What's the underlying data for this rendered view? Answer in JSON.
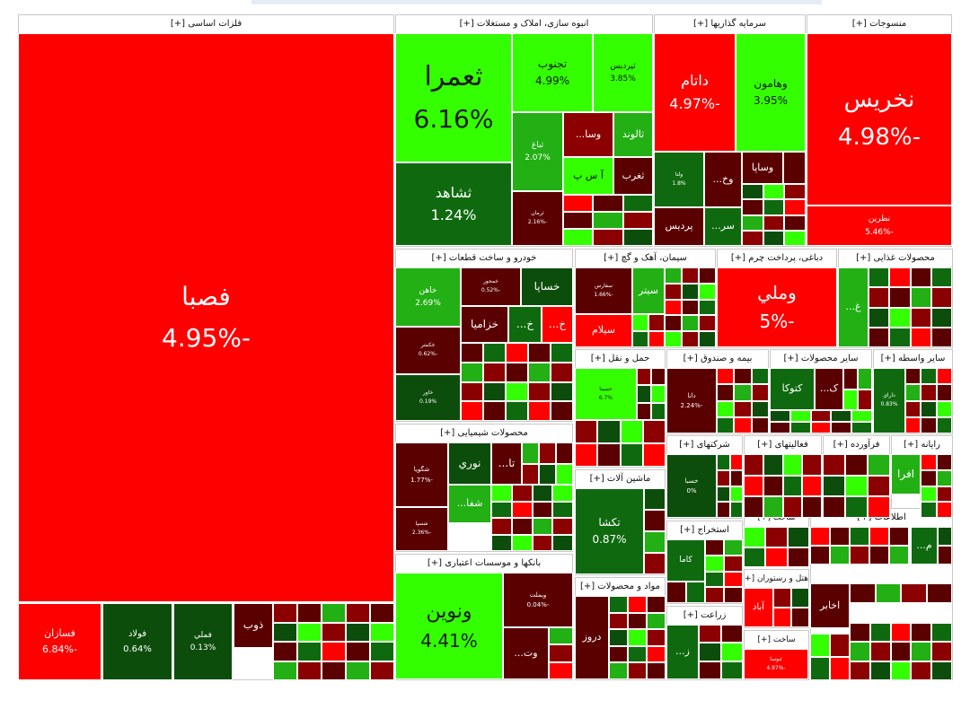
{
  "chart_data": {
    "type": "treemap",
    "colors": {
      "strong_red": "#ff0000",
      "dark_red": "#8b0000",
      "deep_red": "#5a0000",
      "bright_green": "#33ff00",
      "mid_green": "#22b014",
      "dark_green": "#0f6a0f",
      "deep_green": "#0c4d0c"
    },
    "sectors": [
      {
        "name": "فلزات اساسی [+]"
      },
      {
        "name": "انبوه سازی، املاک و مستغلات [+]"
      },
      {
        "name": "سرمایه گذاریها [+]"
      },
      {
        "name": "منسوجات [+]"
      },
      {
        "name": "خودرو و ساخت قطعات [+]"
      },
      {
        "name": "سیمان، آهک و گچ [+]"
      },
      {
        "name": "دباغی، پرداخت چرم [+]"
      },
      {
        "name": "محصولات غذایی [+]"
      },
      {
        "name": "حمل و نقل [+]"
      },
      {
        "name": "بیمه و صندوق [+]"
      },
      {
        "name": "سایر محصولات [+]"
      },
      {
        "name": "سایر واسطه [+]"
      },
      {
        "name": "محصولات شیمیایی [+]"
      },
      {
        "name": "شرکتهای [+]"
      },
      {
        "name": "فعالیتهای [+]"
      },
      {
        "name": "فرآورده [+]"
      },
      {
        "name": "رایانه [+]"
      },
      {
        "name": "ماشین آلات [+]"
      },
      {
        "name": "استخراج [+]"
      },
      {
        "name": "ساخت [+]"
      },
      {
        "name": "بانکها و موسسات اعتباری [+]"
      },
      {
        "name": "مواد و محصولات [+]"
      },
      {
        "name": "هتل و رستوران [+]"
      },
      {
        "name": "زراعت [+]"
      },
      {
        "name": "ساخت [+]"
      },
      {
        "name": "اطلاعات [+]"
      },
      {
        "name": "[+]"
      }
    ],
    "tiles": [
      {
        "name": "فصبا",
        "change": "-4.95%",
        "value": -4.95
      },
      {
        "name": "فسازان",
        "change": "-6.84%",
        "value": -6.84
      },
      {
        "name": "فولاد",
        "change": "0.64%",
        "value": 0.64
      },
      {
        "name": "فملي",
        "change": "0.13%",
        "value": 0.13
      },
      {
        "name": "ذوب",
        "change": "",
        "value": -1.5
      },
      {
        "name": "ثعمرا",
        "change": "6.16%",
        "value": 6.16
      },
      {
        "name": "تجنوب",
        "change": "4.99%",
        "value": 4.99
      },
      {
        "name": "ثپردیس",
        "change": "3.85%",
        "value": 3.85
      },
      {
        "name": "ثشاهد",
        "change": "1.24%",
        "value": 1.24
      },
      {
        "name": "ثباغ",
        "change": "2.07%",
        "value": 2.07
      },
      {
        "name": "وسا...",
        "change": "",
        "value": -2.5
      },
      {
        "name": "ثالوند",
        "change": "",
        "value": 3.0
      },
      {
        "name": "آ س پ",
        "change": "",
        "value": 3.5
      },
      {
        "name": "ثغرب",
        "change": "",
        "value": -2.0
      },
      {
        "name": "ثرمان",
        "change": "-2.16%",
        "value": -2.16
      },
      {
        "name": "داتام",
        "change": "-4.97%",
        "value": -4.97
      },
      {
        "name": "وهامون",
        "change": "3.95%",
        "value": 3.95
      },
      {
        "name": "ولتا",
        "change": "1.8%",
        "value": 1.8
      },
      {
        "name": "وخ...",
        "change": "",
        "value": -2.0
      },
      {
        "name": "وساپا",
        "change": "",
        "value": -2.0
      },
      {
        "name": "پردیس",
        "change": "",
        "value": -2.0
      },
      {
        "name": "سر...",
        "change": "",
        "value": 1.0
      },
      {
        "name": "نخریس",
        "change": "-4.98%",
        "value": -4.98
      },
      {
        "name": "نطرین",
        "change": "-5.46%",
        "value": -5.46
      },
      {
        "name": "خاهن",
        "change": "2.69%",
        "value": 2.69
      },
      {
        "name": "خمحور",
        "change": "-0.52%",
        "value": -0.52
      },
      {
        "name": "خساپا",
        "change": "",
        "value": 0.5
      },
      {
        "name": "خزاميا",
        "change": "",
        "value": -1.5
      },
      {
        "name": "خ...",
        "change": "",
        "value": 1.0
      },
      {
        "name": "خ...",
        "change": "",
        "value": -4.0
      },
      {
        "name": "خکمتر",
        "change": "-0.62%",
        "value": -0.62
      },
      {
        "name": "خاور",
        "change": "0.19%",
        "value": 0.19
      },
      {
        "name": "سفارس",
        "change": "-1.66%",
        "value": -1.66
      },
      {
        "name": "سیتر",
        "change": "",
        "value": 2.0
      },
      {
        "name": "سیلام",
        "change": "",
        "value": -4.0
      },
      {
        "name": "وملي",
        "change": "-5%",
        "value": -5.0
      },
      {
        "name": "غ...",
        "change": "",
        "value": 3.0
      },
      {
        "name": "حسینا",
        "change": "6.7%",
        "value": 6.7
      },
      {
        "name": "دانا",
        "change": "-2.24%",
        "value": -2.24
      },
      {
        "name": "كتوكا",
        "change": "",
        "value": 1.5
      },
      {
        "name": "ک...",
        "change": "",
        "value": -2.0
      },
      {
        "name": "داراي",
        "change": "0.83%",
        "value": 0.83
      },
      {
        "name": "شگويا",
        "change": "-1.77%",
        "value": -1.77
      },
      {
        "name": "نوري",
        "change": "",
        "value": 0.5
      },
      {
        "name": "تا...",
        "change": "",
        "value": -2.0
      },
      {
        "name": "شفا...",
        "change": "",
        "value": 3.0
      },
      {
        "name": "شسپا",
        "change": "-2.36%",
        "value": -2.36
      },
      {
        "name": "خسبا",
        "change": "0%",
        "value": 0.0
      },
      {
        "name": "افرا",
        "change": "",
        "value": 3.0
      },
      {
        "name": "تکشا",
        "change": "0.87%",
        "value": 0.87
      },
      {
        "name": "کاما",
        "change": "",
        "value": 0.8
      },
      {
        "name": "ونوین",
        "change": "4.41%",
        "value": 4.41
      },
      {
        "name": "وبملت",
        "change": "-0.04%",
        "value": -0.04
      },
      {
        "name": "وت...",
        "change": "",
        "value": -2.0
      },
      {
        "name": "دروز",
        "change": "",
        "value": -2.0
      },
      {
        "name": "آباد",
        "change": "",
        "value": -4.0
      },
      {
        "name": "اخابر",
        "change": "",
        "value": -2.0
      },
      {
        "name": "ز...",
        "change": "",
        "value": 1.0
      },
      {
        "name": "ثنوسا",
        "change": "-4.97%",
        "value": -4.97
      },
      {
        "name": "م...",
        "change": "",
        "value": 1.0
      }
    ]
  }
}
